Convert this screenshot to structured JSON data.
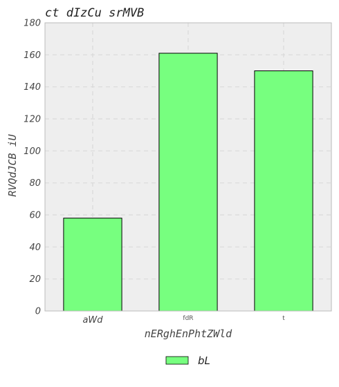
{
  "chart_data": {
    "type": "bar",
    "title": "ct dIzCu srMVB",
    "xlabel": "nERghEnPhtZWld",
    "ylabel": "RVQdJCB iU",
    "categories": [
      "aWd",
      "fdR",
      "t"
    ],
    "series": [
      {
        "name": "bL",
        "values": [
          58,
          161,
          150
        ],
        "color": "#77ff7f"
      }
    ],
    "ylim": [
      0,
      180
    ],
    "yticks": [
      0,
      20,
      40,
      60,
      80,
      100,
      120,
      140,
      160,
      180
    ],
    "grid": true,
    "legend": "bottom-center",
    "background": "#eeeeee"
  }
}
